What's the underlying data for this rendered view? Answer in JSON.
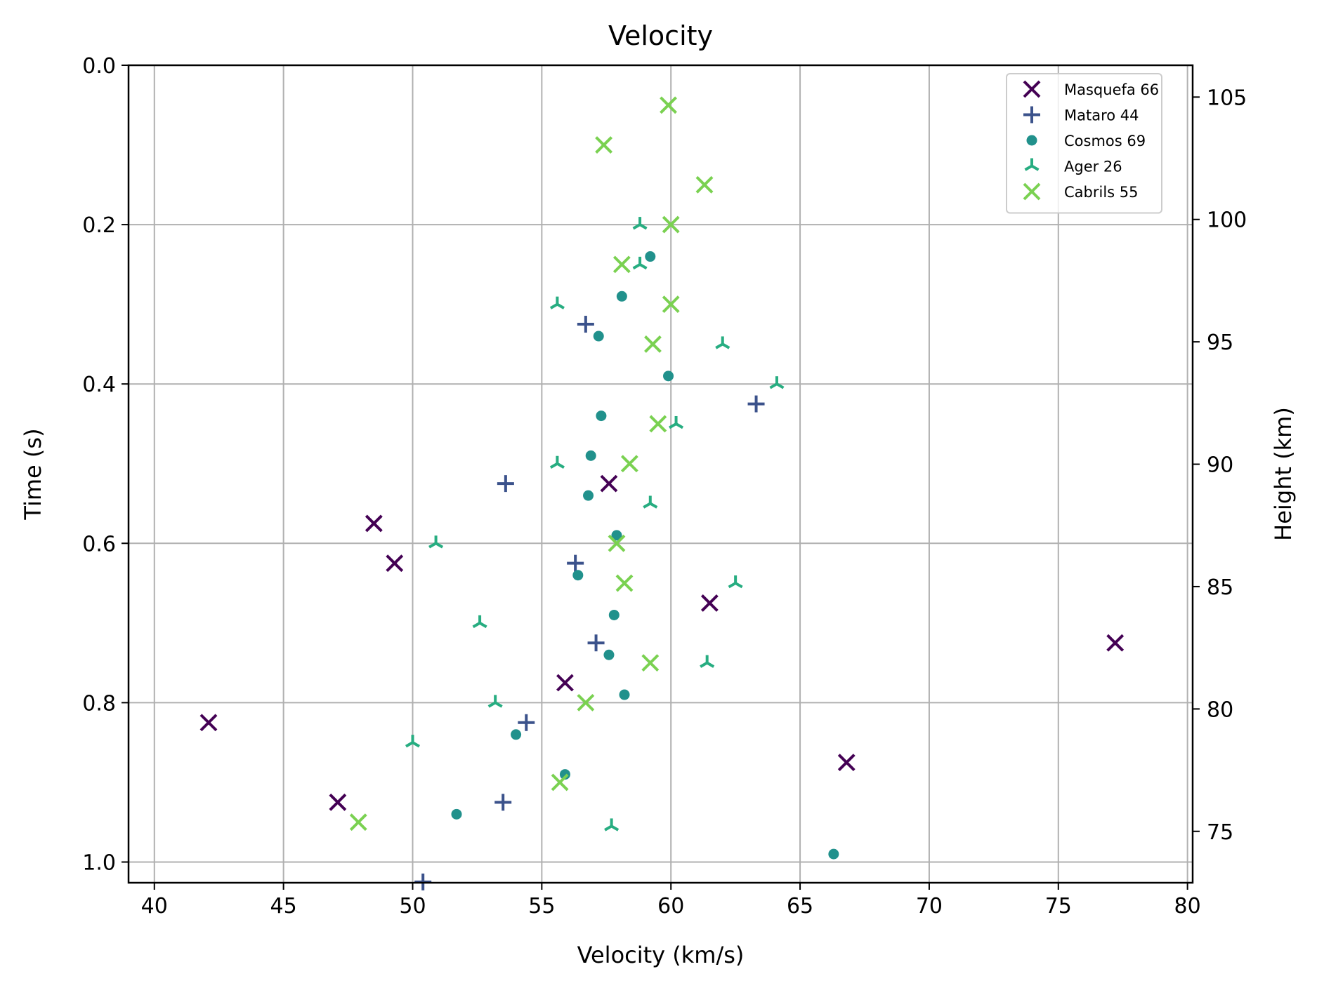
{
  "chart_data": {
    "type": "scatter",
    "title": "Velocity",
    "xlabel": "Velocity (km/s)",
    "ylabel": "Time (s)",
    "y2label": "Height (km)",
    "xlim": [
      39,
      80.2
    ],
    "ylim": [
      1.026,
      0.0
    ],
    "y2lim": [
      72.9,
      106.3
    ],
    "x_ticks": [
      40,
      45,
      50,
      55,
      60,
      65,
      70,
      75,
      80
    ],
    "y_ticks": [
      0.0,
      0.2,
      0.4,
      0.6,
      0.8,
      1.0
    ],
    "y_tick_labels": [
      "0.0",
      "0.2",
      "0.4",
      "0.6",
      "0.8",
      "1.0"
    ],
    "y2_ticks": [
      75,
      80,
      85,
      90,
      95,
      100,
      105
    ],
    "grid": true,
    "legend_position": "top-right",
    "series": [
      {
        "name": "Masquefa 66",
        "marker": "x",
        "color": "#440154",
        "points": [
          [
            57.6,
            0.525
          ],
          [
            48.5,
            0.575
          ],
          [
            49.3,
            0.625
          ],
          [
            61.5,
            0.675
          ],
          [
            77.2,
            0.725
          ],
          [
            55.9,
            0.775
          ],
          [
            42.1,
            0.825
          ],
          [
            66.8,
            0.875
          ],
          [
            47.1,
            0.925
          ]
        ]
      },
      {
        "name": "Mataro 44",
        "marker": "plus",
        "color": "#3b528b",
        "points": [
          [
            56.7,
            0.325
          ],
          [
            63.3,
            0.425
          ],
          [
            53.6,
            0.525
          ],
          [
            56.3,
            0.625
          ],
          [
            57.1,
            0.725
          ],
          [
            54.4,
            0.825
          ],
          [
            53.5,
            0.925
          ],
          [
            50.4,
            1.025
          ]
        ]
      },
      {
        "name": "Cosmos 69",
        "marker": "circle",
        "color": "#21918c",
        "points": [
          [
            59.2,
            0.24
          ],
          [
            58.1,
            0.29
          ],
          [
            57.2,
            0.34
          ],
          [
            59.9,
            0.39
          ],
          [
            57.3,
            0.44
          ],
          [
            56.9,
            0.49
          ],
          [
            56.8,
            0.54
          ],
          [
            57.9,
            0.59
          ],
          [
            56.4,
            0.64
          ],
          [
            57.8,
            0.69
          ],
          [
            57.6,
            0.74
          ],
          [
            58.2,
            0.79
          ],
          [
            54.0,
            0.84
          ],
          [
            55.9,
            0.89
          ],
          [
            51.7,
            0.94
          ],
          [
            66.3,
            0.99
          ]
        ]
      },
      {
        "name": "Ager 26",
        "marker": "tri",
        "color": "#27ad81",
        "points": [
          [
            58.8,
            0.2
          ],
          [
            58.8,
            0.25
          ],
          [
            55.6,
            0.3
          ],
          [
            62.0,
            0.35
          ],
          [
            64.1,
            0.4
          ],
          [
            60.2,
            0.45
          ],
          [
            55.6,
            0.5
          ],
          [
            59.2,
            0.55
          ],
          [
            50.9,
            0.6
          ],
          [
            62.5,
            0.65
          ],
          [
            52.6,
            0.7
          ],
          [
            61.4,
            0.75
          ],
          [
            53.2,
            0.8
          ],
          [
            50.0,
            0.85
          ],
          [
            57.7,
            0.955
          ]
        ]
      },
      {
        "name": "Cabrils 55",
        "marker": "x",
        "color": "#7ad151",
        "points": [
          [
            59.9,
            0.05
          ],
          [
            57.4,
            0.1
          ],
          [
            61.3,
            0.15
          ],
          [
            60.0,
            0.2
          ],
          [
            58.1,
            0.25
          ],
          [
            60.0,
            0.3
          ],
          [
            59.3,
            0.35
          ],
          [
            59.5,
            0.45
          ],
          [
            58.4,
            0.5
          ],
          [
            57.9,
            0.6
          ],
          [
            58.2,
            0.65
          ],
          [
            59.2,
            0.75
          ],
          [
            56.7,
            0.8
          ],
          [
            55.7,
            0.9
          ],
          [
            47.9,
            0.95
          ]
        ]
      }
    ]
  }
}
